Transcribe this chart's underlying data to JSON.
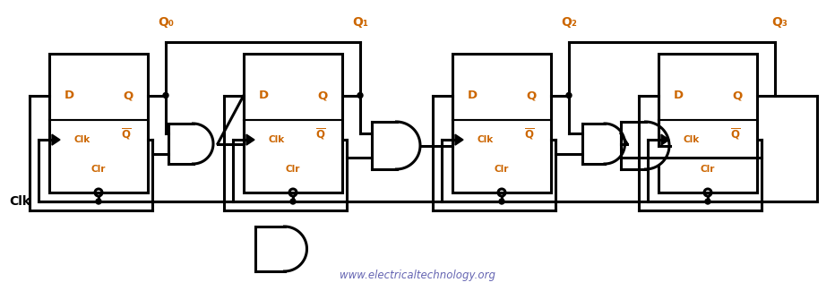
{
  "watermark": "www.electricaltechnology.org",
  "watermark_color": "#5555aa",
  "bg_color": "#ffffff",
  "line_color": "#000000",
  "q_label_color": "#cc6600",
  "clk_label_color": "#000000",
  "ff_label_color": "#cc6600",
  "q_labels": [
    "Q₀",
    "Q₁",
    "Q₂",
    "Q₃"
  ],
  "clk_label": "Clk",
  "lw": 2.2
}
